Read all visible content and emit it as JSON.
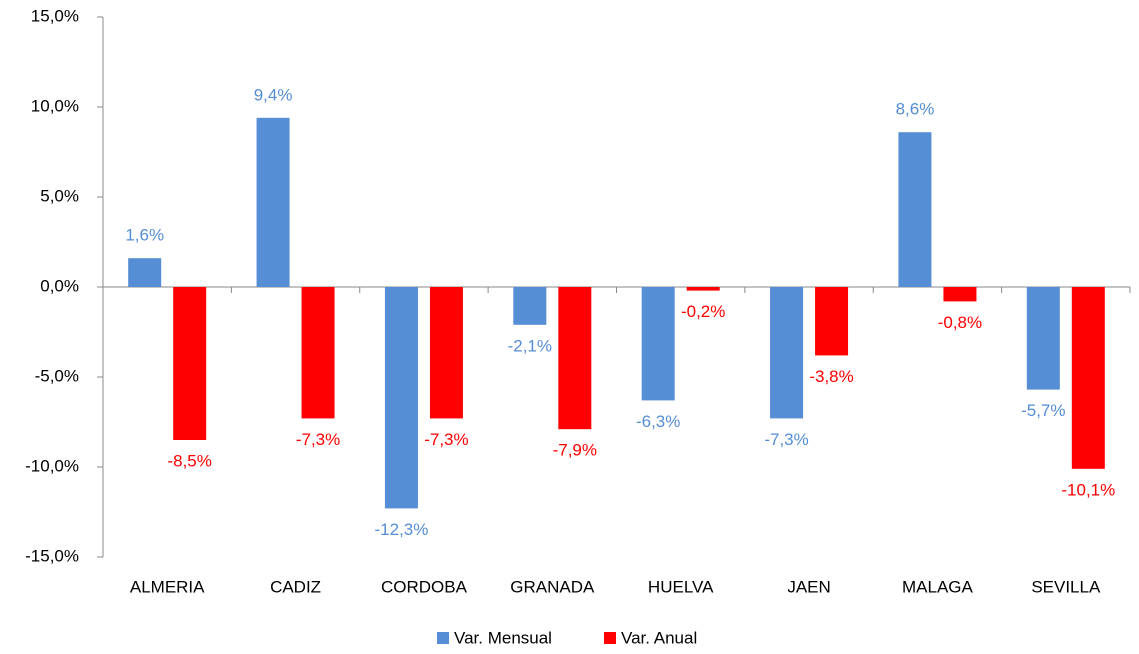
{
  "chart_data": {
    "type": "bar",
    "categories": [
      "ALMERIA",
      "CADIZ",
      "CORDOBA",
      "GRANADA",
      "HUELVA",
      "JAEN",
      "MALAGA",
      "SEVILLA"
    ],
    "series": [
      {
        "name": "Var. Mensual",
        "color": "#558ed5",
        "values": [
          1.6,
          9.4,
          -12.3,
          -2.1,
          -6.3,
          -7.3,
          8.6,
          -5.7
        ],
        "value_labels": [
          "1,6%",
          "9,4%",
          "-12,3%",
          "-2,1%",
          "-6,3%",
          "-7,3%",
          "8,6%",
          "-5,7%"
        ]
      },
      {
        "name": "Var. Anual",
        "color": "#ff0000",
        "values": [
          -8.5,
          -7.3,
          -7.3,
          -7.9,
          -0.2,
          -3.8,
          -0.8,
          -10.1
        ],
        "value_labels": [
          "-8,5%",
          "-7,3%",
          "-7,3%",
          "-7,9%",
          "-0,2%",
          "-3,8%",
          "-0,8%",
          "-10,1%"
        ]
      }
    ],
    "ylim": [
      -15,
      15
    ],
    "yticks": [
      {
        "value": -15,
        "label": "-15,0%"
      },
      {
        "value": -10,
        "label": "-10,0%"
      },
      {
        "value": -5,
        "label": "-5,0%"
      },
      {
        "value": 0,
        "label": "0,0%"
      },
      {
        "value": 5,
        "label": "5,0%"
      },
      {
        "value": 10,
        "label": "10,0%"
      },
      {
        "value": 15,
        "label": "15,0%"
      }
    ],
    "grid": false,
    "legend": "bottom"
  }
}
